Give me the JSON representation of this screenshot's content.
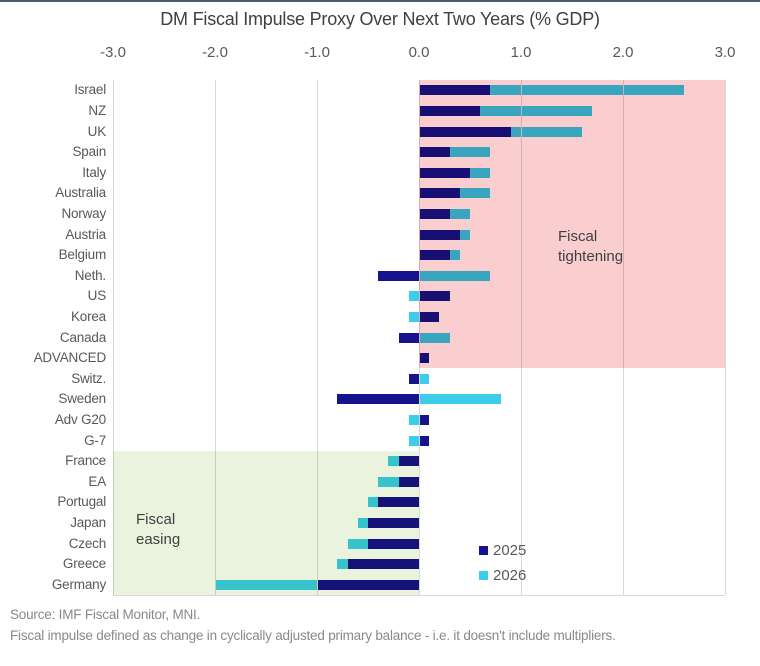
{
  "accent_bar_color": "#44616B",
  "chart_data": {
    "type": "bar",
    "orientation": "horizontal",
    "stacked": true,
    "title": "DM Fiscal Impulse Proxy Over Next Two Years (% GDP)",
    "x_axis": {
      "position": "top",
      "min": -3.0,
      "max": 3.0,
      "tick_labels": [
        "-3.0",
        "-2.0",
        "-1.0",
        "0.0",
        "1.0",
        "2.0",
        "3.0"
      ],
      "tick_values": [
        -3,
        -2,
        -1,
        0,
        1,
        2,
        3
      ],
      "grid": true,
      "gridline_color": "#D9D9D9"
    },
    "categories": [
      "Israel",
      "NZ",
      "UK",
      "Spain",
      "Italy",
      "Australia",
      "Norway",
      "Austria",
      "Belgium",
      "Neth.",
      "US",
      "Korea",
      "Canada",
      "ADVANCED",
      "Switz.",
      "Sweden",
      "Adv G20",
      "G-7",
      "France",
      "EA",
      "Portugal",
      "Japan",
      "Czech",
      "Greece",
      "Germany"
    ],
    "series": [
      {
        "name": "2025",
        "color": "#17128D",
        "values": [
          0.7,
          0.6,
          0.9,
          0.3,
          0.5,
          0.4,
          0.3,
          0.4,
          0.3,
          -0.4,
          0.3,
          0.2,
          -0.2,
          0.1,
          -0.1,
          -0.8,
          0.1,
          0.1,
          -0.2,
          -0.2,
          -0.4,
          -0.5,
          -0.5,
          -0.7,
          -1.0
        ]
      },
      {
        "name": "2026",
        "color": "#3BCDEA",
        "values": [
          1.9,
          1.1,
          0.7,
          0.4,
          0.2,
          0.3,
          0.2,
          0.1,
          0.1,
          0.7,
          -0.1,
          -0.1,
          0.3,
          0.0,
          0.1,
          0.8,
          -0.1,
          -0.1,
          -0.1,
          -0.2,
          -0.1,
          -0.1,
          -0.2,
          -0.1,
          -1.0
        ]
      }
    ],
    "legend": {
      "position": "inside-bottom-right",
      "entries": [
        "2025",
        "2026"
      ]
    },
    "regions": [
      {
        "name": "fiscal-tightening",
        "label": "Fiscal\ntightening",
        "color": "#FACDCF",
        "x0": 0,
        "x1": 3,
        "row_start": 0,
        "row_end": 13
      },
      {
        "name": "fiscal-easing",
        "label": "Fiscal\neasing",
        "color": "#E9F3DD",
        "x0": -3,
        "x1": 0,
        "row_start": 18,
        "row_end": 24
      }
    ]
  },
  "footer": {
    "source": "Source: IMF Fiscal Monitor, MNI.",
    "note": "Fiscal impulse defined as change in cyclically adjusted primary balance - i.e. it doesn't include multipliers."
  }
}
